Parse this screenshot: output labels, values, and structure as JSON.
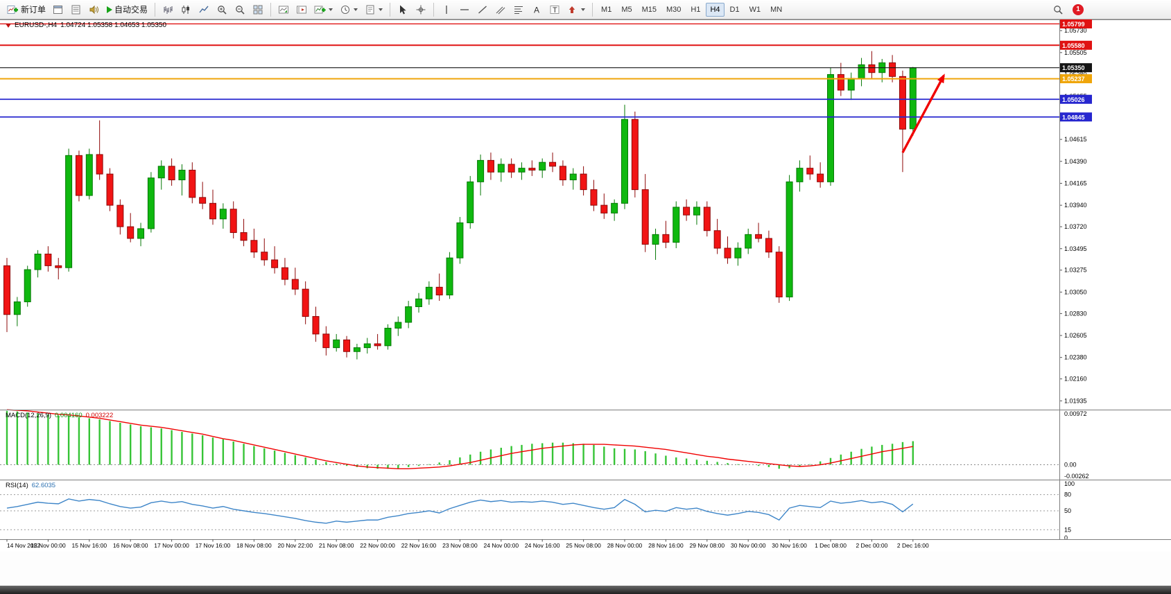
{
  "toolbar": {
    "new_order_label": "新订单",
    "auto_trading_label": "自动交易",
    "timeframes": [
      "M1",
      "M5",
      "M15",
      "M30",
      "H1",
      "H4",
      "D1",
      "W1",
      "MN"
    ],
    "active_timeframe": "H4",
    "notification_count": "1",
    "text_tool_glyph": "A",
    "label_tool_glyph": "T"
  },
  "chart_data": {
    "type": "candlestick",
    "symbol_title": "EURUSD-,H4",
    "ohlc_label": "1.04724 1.05358 1.04653 1.05350",
    "price_ticks": [
      "1.05730",
      "1.05505",
      "1.05280",
      "1.05055",
      "1.04830",
      "1.04615",
      "1.04390",
      "1.04165",
      "1.03940",
      "1.03720",
      "1.03495",
      "1.03275",
      "1.03050",
      "1.02830",
      "1.02605",
      "1.02380",
      "1.02160",
      "1.01935"
    ],
    "levels": [
      {
        "label": "1.05799",
        "value": 1.05799,
        "color": "#e01212",
        "width": 1.4
      },
      {
        "label": "1.05580",
        "value": 1.0558,
        "color": "#e01212",
        "width": 2
      },
      {
        "label": "1.05350",
        "value": 1.0535,
        "color": "#151515",
        "width": 1.2
      },
      {
        "label": "1.05237",
        "value": 1.05237,
        "color": "#efa50a",
        "width": 2
      },
      {
        "label": "1.05026",
        "value": 1.05026,
        "color": "#2626cf",
        "width": 1.7
      },
      {
        "label": "1.04845",
        "value": 1.04845,
        "color": "#2626cf",
        "width": 1.7
      }
    ],
    "colors": {
      "up_fill": "#0fb80f",
      "up_stroke": "#067806",
      "down_fill": "#f11414",
      "down_stroke": "#8e0808",
      "macd_hist": "#36c436",
      "macd_signal": "#f00000",
      "rsi_line": "#3d85c8"
    },
    "candles": [
      [
        1.0332,
        1.034,
        1.0264,
        1.0282
      ],
      [
        1.0282,
        1.03,
        1.027,
        1.0295
      ],
      [
        1.0295,
        1.0332,
        1.029,
        1.0328
      ],
      [
        1.0328,
        1.0348,
        1.032,
        1.0344
      ],
      [
        1.0344,
        1.0352,
        1.0326,
        1.0332
      ],
      [
        1.0332,
        1.034,
        1.0318,
        1.033
      ],
      [
        1.033,
        1.0452,
        1.0326,
        1.0445
      ],
      [
        1.0445,
        1.045,
        1.0398,
        1.0404
      ],
      [
        1.0404,
        1.0452,
        1.04,
        1.0446
      ],
      [
        1.0446,
        1.0481,
        1.042,
        1.0426
      ],
      [
        1.0426,
        1.0432,
        1.0388,
        1.0394
      ],
      [
        1.0394,
        1.04,
        1.0364,
        1.0372
      ],
      [
        1.0372,
        1.0386,
        1.0356,
        1.036
      ],
      [
        1.036,
        1.0376,
        1.0352,
        1.037
      ],
      [
        1.037,
        1.0428,
        1.0366,
        1.0422
      ],
      [
        1.0422,
        1.044,
        1.041,
        1.0434
      ],
      [
        1.0434,
        1.0442,
        1.0414,
        1.042
      ],
      [
        1.042,
        1.0436,
        1.0404,
        1.043
      ],
      [
        1.043,
        1.0438,
        1.0396,
        1.0402
      ],
      [
        1.0402,
        1.0418,
        1.039,
        1.0396
      ],
      [
        1.0396,
        1.041,
        1.0374,
        1.038
      ],
      [
        1.038,
        1.0396,
        1.037,
        1.039
      ],
      [
        1.039,
        1.0398,
        1.036,
        1.0366
      ],
      [
        1.0366,
        1.038,
        1.0352,
        1.0358
      ],
      [
        1.0358,
        1.037,
        1.034,
        1.0346
      ],
      [
        1.0346,
        1.036,
        1.0332,
        1.0338
      ],
      [
        1.0338,
        1.0352,
        1.0324,
        1.033
      ],
      [
        1.033,
        1.034,
        1.0312,
        1.0318
      ],
      [
        1.0318,
        1.033,
        1.0302,
        1.0308
      ],
      [
        1.0308,
        1.0316,
        1.0272,
        1.028
      ],
      [
        1.028,
        1.029,
        1.0254,
        1.0262
      ],
      [
        1.0262,
        1.027,
        1.024,
        1.0248
      ],
      [
        1.0248,
        1.0262,
        1.0244,
        1.0256
      ],
      [
        1.0256,
        1.026,
        1.0238,
        1.0244
      ],
      [
        1.0244,
        1.0252,
        1.0236,
        1.0248
      ],
      [
        1.0248,
        1.0258,
        1.0242,
        1.0252
      ],
      [
        1.0252,
        1.0262,
        1.0246,
        1.025
      ],
      [
        1.025,
        1.0272,
        1.0246,
        1.0268
      ],
      [
        1.0268,
        1.028,
        1.026,
        1.0274
      ],
      [
        1.0274,
        1.0296,
        1.0268,
        1.029
      ],
      [
        1.029,
        1.0304,
        1.0284,
        1.0298
      ],
      [
        1.0298,
        1.0316,
        1.0292,
        1.031
      ],
      [
        1.031,
        1.0324,
        1.0296,
        1.0302
      ],
      [
        1.0302,
        1.0346,
        1.0298,
        1.034
      ],
      [
        1.034,
        1.0382,
        1.0334,
        1.0376
      ],
      [
        1.0376,
        1.0424,
        1.037,
        1.0418
      ],
      [
        1.0418,
        1.0446,
        1.0404,
        1.044
      ],
      [
        1.044,
        1.0448,
        1.042,
        1.0428
      ],
      [
        1.0428,
        1.0442,
        1.0418,
        1.0436
      ],
      [
        1.0436,
        1.0442,
        1.0422,
        1.0428
      ],
      [
        1.0428,
        1.0438,
        1.042,
        1.0432
      ],
      [
        1.0432,
        1.044,
        1.0424,
        1.043
      ],
      [
        1.043,
        1.0442,
        1.0422,
        1.0438
      ],
      [
        1.0438,
        1.0448,
        1.0428,
        1.0434
      ],
      [
        1.0434,
        1.044,
        1.0414,
        1.042
      ],
      [
        1.042,
        1.0432,
        1.041,
        1.0426
      ],
      [
        1.0426,
        1.0434,
        1.0404,
        1.041
      ],
      [
        1.041,
        1.042,
        1.0388,
        1.0394
      ],
      [
        1.0394,
        1.0406,
        1.038,
        1.0386
      ],
      [
        1.0386,
        1.04,
        1.0378,
        1.0396
      ],
      [
        1.0396,
        1.0497,
        1.039,
        1.0482
      ],
      [
        1.0482,
        1.049,
        1.0402,
        1.041
      ],
      [
        1.041,
        1.0426,
        1.0346,
        1.0354
      ],
      [
        1.0354,
        1.037,
        1.0338,
        1.0364
      ],
      [
        1.0364,
        1.0378,
        1.035,
        1.0356
      ],
      [
        1.0356,
        1.0398,
        1.035,
        1.0392
      ],
      [
        1.0392,
        1.04,
        1.0378,
        1.0384
      ],
      [
        1.0384,
        1.0398,
        1.0374,
        1.0392
      ],
      [
        1.0392,
        1.0398,
        1.0362,
        1.0368
      ],
      [
        1.0368,
        1.038,
        1.0344,
        1.035
      ],
      [
        1.035,
        1.0362,
        1.0334,
        1.034
      ],
      [
        1.034,
        1.0356,
        1.0332,
        1.035
      ],
      [
        1.035,
        1.037,
        1.0344,
        1.0364
      ],
      [
        1.0364,
        1.0376,
        1.0356,
        1.036
      ],
      [
        1.036,
        1.0368,
        1.034,
        1.0346
      ],
      [
        1.0346,
        1.0352,
        1.0294,
        1.03
      ],
      [
        1.03,
        1.0425,
        1.0296,
        1.0418
      ],
      [
        1.0418,
        1.044,
        1.0408,
        1.0432
      ],
      [
        1.0432,
        1.0445,
        1.042,
        1.0426
      ],
      [
        1.0426,
        1.0438,
        1.0412,
        1.0418
      ],
      [
        1.0418,
        1.0535,
        1.0414,
        1.0528
      ],
      [
        1.0528,
        1.054,
        1.0506,
        1.0512
      ],
      [
        1.0512,
        1.053,
        1.0502,
        1.0524
      ],
      [
        1.0524,
        1.0545,
        1.0516,
        1.0538
      ],
      [
        1.0538,
        1.0552,
        1.0524,
        1.053
      ],
      [
        1.053,
        1.0544,
        1.052,
        1.054
      ],
      [
        1.054,
        1.0548,
        1.052,
        1.0526
      ],
      [
        1.0526,
        1.0532,
        1.0428,
        1.0472
      ],
      [
        1.04724,
        1.05358,
        1.04653,
        1.0535
      ]
    ],
    "time_labels": [
      "14 Nov 2022",
      "15 Nov 00:00",
      "15 Nov 16:00",
      "16 Nov 08:00",
      "17 Nov 00:00",
      "17 Nov 16:00",
      "18 Nov 08:00",
      "20 Nov 22:00",
      "21 Nov 08:00",
      "22 Nov 00:00",
      "22 Nov 16:00",
      "23 Nov 08:00",
      "24 Nov 00:00",
      "24 Nov 16:00",
      "25 Nov 08:00",
      "28 Nov 00:00",
      "28 Nov 16:00",
      "29 Nov 08:00",
      "30 Nov 00:00",
      "30 Nov 16:00",
      "1 Dec 08:00",
      "2 Dec 00:00",
      "2 Dec 16:00"
    ],
    "macd": {
      "label": "MACD(12,26,9)",
      "value_main": "0.004160",
      "value_signal": "0.003222",
      "axis_max": "0.00972",
      "axis_zero": "0.00",
      "axis_min": "-0.00262",
      "max": 0.00972,
      "min": -0.00262,
      "histogram": [
        0.0095,
        0.0094,
        0.0092,
        0.009,
        0.0089,
        0.0087,
        0.0086,
        0.0084,
        0.0082,
        0.008,
        0.0077,
        0.0074,
        0.0071,
        0.0068,
        0.0066,
        0.0064,
        0.0061,
        0.0058,
        0.0055,
        0.0052,
        0.0048,
        0.0045,
        0.0041,
        0.0037,
        0.0033,
        0.0029,
        0.0025,
        0.0021,
        0.0017,
        0.0013,
        0.0009,
        0.0005,
        0.0002,
        -0.0002,
        -0.0004,
        -0.0006,
        -0.0007,
        -0.0007,
        -0.0006,
        -0.0004,
        -0.0002,
        0.0001,
        0.0004,
        0.0008,
        0.0013,
        0.0018,
        0.0023,
        0.0027,
        0.003,
        0.0033,
        0.0035,
        0.0037,
        0.0038,
        0.0039,
        0.0039,
        0.0038,
        0.0037,
        0.0035,
        0.0032,
        0.0029,
        0.0028,
        0.0027,
        0.0024,
        0.002,
        0.0016,
        0.0013,
        0.0011,
        0.0009,
        0.0007,
        0.0005,
        0.0003,
        0.0001,
        0.0,
        -0.0002,
        -0.0004,
        -0.0007,
        -0.0006,
        -0.0003,
        0.0001,
        0.0006,
        0.0012,
        0.0018,
        0.0023,
        0.0028,
        0.0032,
        0.0035,
        0.0037,
        0.004,
        0.00416
      ],
      "signal": [
        0.0097,
        0.0096,
        0.0095,
        0.0093,
        0.0091,
        0.0089,
        0.0088,
        0.0086,
        0.0084,
        0.0082,
        0.0079,
        0.0076,
        0.0073,
        0.007,
        0.0068,
        0.0066,
        0.0063,
        0.006,
        0.0057,
        0.0054,
        0.005,
        0.0046,
        0.0043,
        0.0039,
        0.0035,
        0.0031,
        0.0027,
        0.0023,
        0.0019,
        0.0015,
        0.0011,
        0.0007,
        0.0004,
        0.0001,
        -0.0002,
        -0.0004,
        -0.0005,
        -0.0006,
        -0.0007,
        -0.0007,
        -0.0006,
        -0.0005,
        -0.0004,
        -0.0002,
        0.0001,
        0.0004,
        0.0008,
        0.0012,
        0.0016,
        0.002,
        0.0023,
        0.0026,
        0.0029,
        0.0031,
        0.0033,
        0.0035,
        0.0036,
        0.0036,
        0.0036,
        0.0035,
        0.0034,
        0.0033,
        0.0031,
        0.0029,
        0.0027,
        0.0024,
        0.0021,
        0.0018,
        0.0015,
        0.0013,
        0.001,
        0.0008,
        0.0006,
        0.0004,
        0.0002,
        0.0,
        -0.0002,
        -0.0003,
        -0.0002,
        0.0,
        0.0003,
        0.0007,
        0.0011,
        0.0015,
        0.0019,
        0.0023,
        0.0026,
        0.0029,
        0.00322
      ]
    },
    "rsi": {
      "label": "RSI(14)",
      "value": "62.6035",
      "axis_labels": [
        "100",
        "80",
        "50",
        "15",
        "0"
      ],
      "level_lines": [
        80,
        50,
        15
      ],
      "values": [
        55,
        58,
        62,
        66,
        64,
        63,
        72,
        68,
        71,
        69,
        63,
        58,
        55,
        57,
        65,
        68,
        65,
        67,
        62,
        59,
        55,
        58,
        53,
        50,
        47,
        45,
        42,
        39,
        36,
        32,
        29,
        27,
        31,
        29,
        31,
        33,
        33,
        38,
        41,
        45,
        47,
        50,
        46,
        54,
        60,
        66,
        70,
        67,
        69,
        66,
        67,
        66,
        68,
        66,
        62,
        64,
        60,
        56,
        53,
        56,
        71,
        62,
        48,
        51,
        49,
        56,
        53,
        55,
        49,
        45,
        42,
        45,
        49,
        47,
        43,
        33,
        55,
        60,
        58,
        56,
        68,
        64,
        66,
        69,
        65,
        67,
        62,
        48,
        62.6
      ]
    },
    "annotation_arrow": {
      "color": "#f00000",
      "from_bar": 87,
      "from_price": 1.0448,
      "to_bar": 91,
      "to_price": 1.0527
    }
  }
}
